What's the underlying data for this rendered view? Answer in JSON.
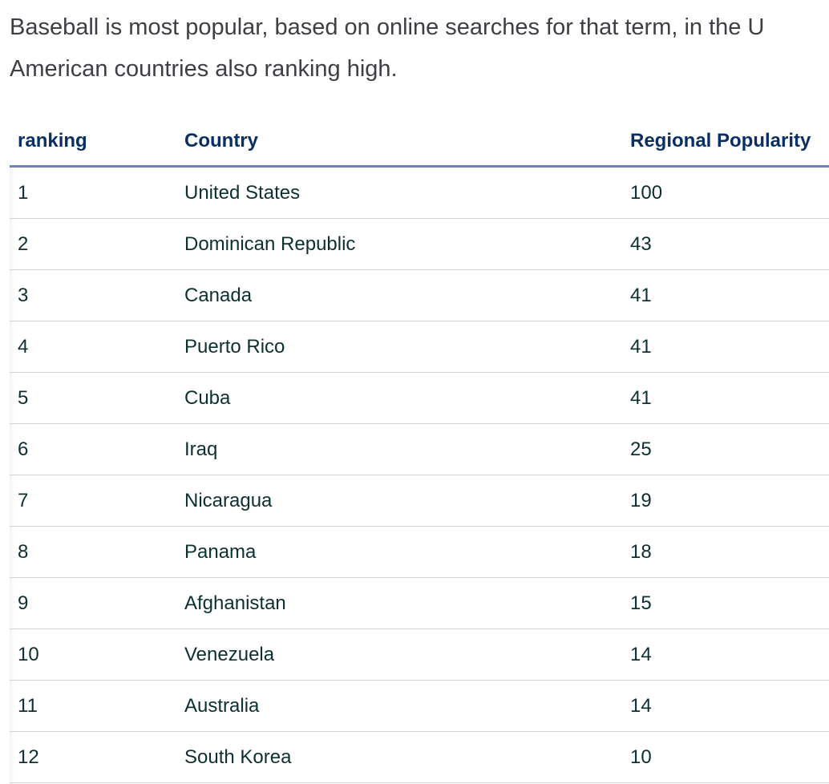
{
  "intro": {
    "line1": "Baseball is most popular, based on online searches for that term, in the U",
    "line2": "American countries also ranking high."
  },
  "table": {
    "headers": {
      "rank": "ranking",
      "country": "Country",
      "popularity": "Regional Popularity"
    },
    "rows": [
      {
        "rank": "1",
        "country": "United States",
        "popularity": "100"
      },
      {
        "rank": "2",
        "country": "Dominican Republic",
        "popularity": "43"
      },
      {
        "rank": "3",
        "country": "Canada",
        "popularity": "41"
      },
      {
        "rank": "4",
        "country": "Puerto Rico",
        "popularity": "41"
      },
      {
        "rank": "5",
        "country": "Cuba",
        "popularity": "41"
      },
      {
        "rank": "6",
        "country": "Iraq",
        "popularity": "25"
      },
      {
        "rank": "7",
        "country": "Nicaragua",
        "popularity": "19"
      },
      {
        "rank": "8",
        "country": "Panama",
        "popularity": "18"
      },
      {
        "rank": "9",
        "country": "Afghanistan",
        "popularity": "15"
      },
      {
        "rank": "10",
        "country": "Venezuela",
        "popularity": "14"
      },
      {
        "rank": "11",
        "country": "Australia",
        "popularity": "14"
      },
      {
        "rank": "12",
        "country": "South Korea",
        "popularity": "10"
      }
    ]
  }
}
